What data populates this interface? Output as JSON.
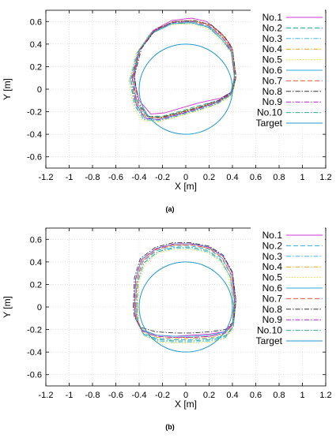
{
  "chart_data": [
    {
      "type": "line",
      "panel_label": "(a)",
      "xlabel": "X [m]",
      "ylabel": "Y [m]",
      "xlim": [
        -1.2,
        1.2
      ],
      "ylim": [
        -0.7,
        0.7
      ],
      "xticks": [
        "-1.2",
        "-1",
        "-0.8",
        "-0.6",
        "-0.4",
        "-0.2",
        "0",
        "0.2",
        "0.4",
        "0.6",
        "0.8",
        "1",
        "1.2"
      ],
      "yticks": [
        "-0.6",
        "-0.4",
        "-0.2",
        "0",
        "0.2",
        "0.4",
        "0.6"
      ],
      "grid": true,
      "legend_position": "top-right",
      "series": [
        {
          "name": "No.1",
          "color": "#cc33cc",
          "dash": "solid",
          "x": [
            -0.45,
            -0.4,
            -0.28,
            -0.12,
            0.05,
            0.18,
            0.3,
            0.38,
            0.42,
            0.4,
            0.3,
            0.12,
            -0.05,
            -0.18,
            -0.3,
            -0.4,
            -0.45
          ],
          "y": [
            0.12,
            0.35,
            0.52,
            0.61,
            0.63,
            0.6,
            0.5,
            0.4,
            0.15,
            -0.02,
            -0.08,
            -0.12,
            -0.17,
            -0.21,
            -0.22,
            -0.1,
            0.12
          ]
        },
        {
          "name": "No.2",
          "color": "#11aa88",
          "dash": "dashed",
          "x": [
            -0.46,
            -0.4,
            -0.27,
            -0.1,
            0.06,
            0.2,
            0.32,
            0.4,
            0.43,
            0.4,
            0.28,
            0.1,
            -0.06,
            -0.2,
            -0.33,
            -0.42,
            -0.46
          ],
          "y": [
            0.1,
            0.34,
            0.51,
            0.59,
            0.6,
            0.56,
            0.45,
            0.35,
            0.1,
            -0.03,
            -0.1,
            -0.15,
            -0.2,
            -0.24,
            -0.24,
            -0.12,
            0.1
          ]
        },
        {
          "name": "No.3",
          "color": "#44bbdd",
          "dash": "dashdot",
          "x": [
            -0.48,
            -0.42,
            -0.3,
            -0.13,
            0.04,
            0.19,
            0.31,
            0.39,
            0.42,
            0.39,
            0.27,
            0.1,
            -0.07,
            -0.22,
            -0.35,
            -0.44,
            -0.48
          ],
          "y": [
            0.08,
            0.32,
            0.5,
            0.58,
            0.59,
            0.55,
            0.44,
            0.33,
            0.08,
            -0.05,
            -0.12,
            -0.17,
            -0.22,
            -0.26,
            -0.26,
            -0.14,
            0.08
          ]
        },
        {
          "name": "No.4",
          "color": "#ddaa22",
          "dash": "dashdot",
          "x": [
            -0.47,
            -0.41,
            -0.28,
            -0.11,
            0.05,
            0.2,
            0.32,
            0.4,
            0.43,
            0.4,
            0.28,
            0.1,
            -0.07,
            -0.21,
            -0.34,
            -0.43,
            -0.47
          ],
          "y": [
            0.09,
            0.33,
            0.51,
            0.6,
            0.61,
            0.57,
            0.46,
            0.34,
            0.09,
            -0.04,
            -0.11,
            -0.16,
            -0.21,
            -0.25,
            -0.25,
            -0.13,
            0.09
          ]
        },
        {
          "name": "No.5",
          "color": "#dddd33",
          "dash": "dotted",
          "x": [
            -0.49,
            -0.43,
            -0.31,
            -0.14,
            0.03,
            0.18,
            0.3,
            0.39,
            0.42,
            0.39,
            0.26,
            0.08,
            -0.09,
            -0.24,
            -0.37,
            -0.45,
            -0.49
          ],
          "y": [
            0.07,
            0.31,
            0.49,
            0.57,
            0.58,
            0.54,
            0.43,
            0.32,
            0.07,
            -0.06,
            -0.14,
            -0.2,
            -0.25,
            -0.29,
            -0.28,
            -0.16,
            0.07
          ]
        },
        {
          "name": "No.6",
          "color": "#33aadd",
          "dash": "solid",
          "x": [
            -0.44,
            -0.4,
            -0.28,
            -0.12,
            0.05,
            0.2,
            0.31,
            0.39,
            0.42,
            0.38,
            0.26,
            0.09,
            -0.08,
            -0.23,
            -0.35,
            -0.43,
            -0.44
          ],
          "y": [
            0.12,
            0.34,
            0.5,
            0.58,
            0.59,
            0.55,
            0.44,
            0.34,
            0.1,
            -0.04,
            -0.12,
            -0.18,
            -0.23,
            -0.27,
            -0.26,
            -0.12,
            0.12
          ]
        },
        {
          "name": "No.7",
          "color": "#ee5544",
          "dash": "dashed",
          "x": [
            -0.45,
            -0.39,
            -0.27,
            -0.11,
            0.06,
            0.21,
            0.33,
            0.4,
            0.43,
            0.39,
            0.27,
            0.1,
            -0.07,
            -0.22,
            -0.34,
            -0.42,
            -0.45
          ],
          "y": [
            0.11,
            0.35,
            0.52,
            0.6,
            0.61,
            0.57,
            0.46,
            0.35,
            0.11,
            -0.03,
            -0.11,
            -0.17,
            -0.22,
            -0.26,
            -0.25,
            -0.12,
            0.11
          ]
        },
        {
          "name": "No.8",
          "color": "#333333",
          "dash": "dashdot",
          "x": [
            -0.44,
            -0.38,
            -0.26,
            -0.1,
            0.07,
            0.22,
            0.33,
            0.4,
            0.43,
            0.4,
            0.28,
            0.11,
            -0.06,
            -0.21,
            -0.33,
            -0.41,
            -0.44
          ],
          "y": [
            0.12,
            0.36,
            0.53,
            0.6,
            0.61,
            0.57,
            0.47,
            0.36,
            0.12,
            -0.02,
            -0.1,
            -0.16,
            -0.21,
            -0.25,
            -0.24,
            -0.11,
            0.12
          ]
        },
        {
          "name": "No.9",
          "color": "#aa22cc",
          "dash": "dashdot",
          "x": [
            -0.46,
            -0.4,
            -0.28,
            -0.12,
            0.05,
            0.2,
            0.32,
            0.39,
            0.42,
            0.39,
            0.27,
            0.09,
            -0.08,
            -0.23,
            -0.35,
            -0.43,
            -0.46
          ],
          "y": [
            0.1,
            0.34,
            0.51,
            0.59,
            0.6,
            0.56,
            0.45,
            0.34,
            0.1,
            -0.04,
            -0.12,
            -0.18,
            -0.23,
            -0.27,
            -0.26,
            -0.13,
            0.1
          ]
        },
        {
          "name": "No.10",
          "color": "#33aa88",
          "dash": "dashdot",
          "x": [
            -0.47,
            -0.41,
            -0.29,
            -0.12,
            0.04,
            0.19,
            0.31,
            0.39,
            0.42,
            0.39,
            0.27,
            0.09,
            -0.08,
            -0.23,
            -0.36,
            -0.44,
            -0.47
          ],
          "y": [
            0.09,
            0.33,
            0.5,
            0.58,
            0.59,
            0.55,
            0.44,
            0.33,
            0.09,
            -0.05,
            -0.13,
            -0.19,
            -0.24,
            -0.28,
            -0.27,
            -0.14,
            0.09
          ]
        },
        {
          "name": "Target",
          "color": "#2299cc",
          "dash": "solid",
          "shape": "circle",
          "center": [
            0,
            0
          ],
          "radius": 0.4
        }
      ]
    },
    {
      "type": "line",
      "panel_label": "(b)",
      "xlabel": "X [m]",
      "ylabel": "Y [m]",
      "xlim": [
        -1.2,
        1.2
      ],
      "ylim": [
        -0.7,
        0.7
      ],
      "xticks": [
        "-1.2",
        "-1",
        "-0.8",
        "-0.6",
        "-0.4",
        "-0.2",
        "0",
        "0.2",
        "0.4",
        "0.6",
        "0.8",
        "1",
        "1.2"
      ],
      "yticks": [
        "-0.6",
        "-0.4",
        "-0.2",
        "0",
        "0.2",
        "0.4",
        "0.6"
      ],
      "grid": true,
      "legend_position": "top-right",
      "series": [
        {
          "name": "No.1",
          "color": "#cc33cc",
          "dash": "solid",
          "x": [
            -0.44,
            -0.43,
            -0.38,
            -0.25,
            -0.1,
            0.05,
            0.2,
            0.32,
            0.4,
            0.42,
            0.4,
            0.33,
            0.2,
            0.05,
            -0.1,
            -0.25,
            -0.38,
            -0.43,
            -0.44
          ],
          "y": [
            0.0,
            0.25,
            0.42,
            0.52,
            0.56,
            0.56,
            0.53,
            0.45,
            0.3,
            0.05,
            -0.15,
            -0.22,
            -0.24,
            -0.25,
            -0.26,
            -0.25,
            -0.2,
            -0.1,
            0.0
          ]
        },
        {
          "name": "No.2",
          "color": "#33aadd",
          "dash": "dashed",
          "x": [
            -0.43,
            -0.42,
            -0.37,
            -0.25,
            -0.1,
            0.05,
            0.2,
            0.31,
            0.39,
            0.42,
            0.41,
            0.35,
            0.22,
            0.06,
            -0.1,
            -0.25,
            -0.37,
            -0.42,
            -0.43
          ],
          "y": [
            0.0,
            0.23,
            0.4,
            0.5,
            0.54,
            0.54,
            0.51,
            0.43,
            0.28,
            0.03,
            -0.17,
            -0.25,
            -0.28,
            -0.29,
            -0.29,
            -0.28,
            -0.23,
            -0.12,
            0.0
          ]
        },
        {
          "name": "No.3",
          "color": "#44bbdd",
          "dash": "dashdot",
          "x": [
            -0.42,
            -0.41,
            -0.36,
            -0.24,
            -0.1,
            0.05,
            0.19,
            0.3,
            0.38,
            0.41,
            0.4,
            0.34,
            0.22,
            0.06,
            -0.1,
            -0.24,
            -0.36,
            -0.41,
            -0.42
          ],
          "y": [
            0.0,
            0.22,
            0.39,
            0.49,
            0.52,
            0.52,
            0.49,
            0.41,
            0.27,
            0.02,
            -0.19,
            -0.27,
            -0.3,
            -0.31,
            -0.31,
            -0.3,
            -0.25,
            -0.13,
            0.0
          ]
        },
        {
          "name": "No.4",
          "color": "#ddaa22",
          "dash": "dashdot",
          "x": [
            -0.43,
            -0.42,
            -0.37,
            -0.25,
            -0.1,
            0.05,
            0.2,
            0.31,
            0.39,
            0.42,
            0.41,
            0.35,
            0.22,
            0.06,
            -0.1,
            -0.25,
            -0.37,
            -0.42,
            -0.43
          ],
          "y": [
            0.0,
            0.24,
            0.41,
            0.51,
            0.55,
            0.55,
            0.52,
            0.44,
            0.29,
            0.04,
            -0.16,
            -0.24,
            -0.27,
            -0.28,
            -0.28,
            -0.27,
            -0.22,
            -0.11,
            0.0
          ]
        },
        {
          "name": "No.5",
          "color": "#dddd33",
          "dash": "dotted",
          "x": [
            -0.41,
            -0.4,
            -0.35,
            -0.24,
            -0.1,
            0.05,
            0.19,
            0.3,
            0.37,
            0.4,
            0.4,
            0.34,
            0.22,
            0.06,
            -0.1,
            -0.24,
            -0.35,
            -0.4,
            -0.41
          ],
          "y": [
            0.0,
            0.22,
            0.38,
            0.48,
            0.51,
            0.51,
            0.48,
            0.4,
            0.26,
            0.01,
            -0.2,
            -0.28,
            -0.31,
            -0.32,
            -0.32,
            -0.31,
            -0.26,
            -0.14,
            0.0
          ]
        },
        {
          "name": "No.6",
          "color": "#33aadd",
          "dash": "solid",
          "x": [
            -0.44,
            -0.43,
            -0.38,
            -0.25,
            -0.1,
            0.05,
            0.2,
            0.32,
            0.4,
            0.43,
            0.41,
            0.34,
            0.21,
            0.05,
            -0.1,
            -0.25,
            -0.38,
            -0.43,
            -0.44
          ],
          "y": [
            0.0,
            0.25,
            0.42,
            0.52,
            0.56,
            0.56,
            0.53,
            0.45,
            0.3,
            0.05,
            -0.15,
            -0.22,
            -0.25,
            -0.26,
            -0.26,
            -0.25,
            -0.2,
            -0.1,
            0.0
          ]
        },
        {
          "name": "No.7",
          "color": "#ee5544",
          "dash": "dashed",
          "x": [
            -0.43,
            -0.42,
            -0.37,
            -0.25,
            -0.1,
            0.05,
            0.2,
            0.31,
            0.39,
            0.42,
            0.4,
            0.34,
            0.21,
            0.05,
            -0.1,
            -0.25,
            -0.37,
            -0.42,
            -0.43
          ],
          "y": [
            0.0,
            0.24,
            0.41,
            0.51,
            0.55,
            0.55,
            0.52,
            0.44,
            0.29,
            0.04,
            -0.16,
            -0.23,
            -0.26,
            -0.27,
            -0.27,
            -0.26,
            -0.21,
            -0.11,
            0.0
          ]
        },
        {
          "name": "No.8",
          "color": "#333333",
          "dash": "dashdot",
          "x": [
            -0.45,
            -0.44,
            -0.39,
            -0.26,
            -0.11,
            0.04,
            0.2,
            0.32,
            0.4,
            0.43,
            0.41,
            0.34,
            0.21,
            0.05,
            -0.1,
            -0.26,
            -0.39,
            -0.44,
            -0.45
          ],
          "y": [
            0.0,
            0.26,
            0.43,
            0.53,
            0.57,
            0.57,
            0.54,
            0.46,
            0.31,
            0.06,
            -0.13,
            -0.2,
            -0.22,
            -0.23,
            -0.23,
            -0.22,
            -0.18,
            -0.09,
            0.0
          ]
        },
        {
          "name": "No.9",
          "color": "#aa22cc",
          "dash": "dashdot",
          "x": [
            -0.44,
            -0.43,
            -0.38,
            -0.25,
            -0.1,
            0.05,
            0.2,
            0.32,
            0.4,
            0.42,
            0.4,
            0.34,
            0.21,
            0.05,
            -0.1,
            -0.25,
            -0.38,
            -0.43,
            -0.44
          ],
          "y": [
            0.0,
            0.25,
            0.42,
            0.52,
            0.56,
            0.56,
            0.53,
            0.45,
            0.3,
            0.05,
            -0.15,
            -0.23,
            -0.26,
            -0.27,
            -0.27,
            -0.26,
            -0.21,
            -0.1,
            0.0
          ]
        },
        {
          "name": "No.10",
          "color": "#33aa88",
          "dash": "dashdot",
          "x": [
            -0.42,
            -0.41,
            -0.36,
            -0.24,
            -0.1,
            0.05,
            0.19,
            0.3,
            0.38,
            0.41,
            0.4,
            0.34,
            0.22,
            0.06,
            -0.1,
            -0.24,
            -0.36,
            -0.41,
            -0.42
          ],
          "y": [
            0.0,
            0.23,
            0.39,
            0.49,
            0.53,
            0.53,
            0.5,
            0.42,
            0.27,
            0.02,
            -0.18,
            -0.26,
            -0.29,
            -0.3,
            -0.3,
            -0.29,
            -0.24,
            -0.13,
            0.0
          ]
        },
        {
          "name": "Target",
          "color": "#2299cc",
          "dash": "solid",
          "shape": "circle",
          "center": [
            0,
            0
          ],
          "radius": 0.4
        }
      ]
    }
  ]
}
